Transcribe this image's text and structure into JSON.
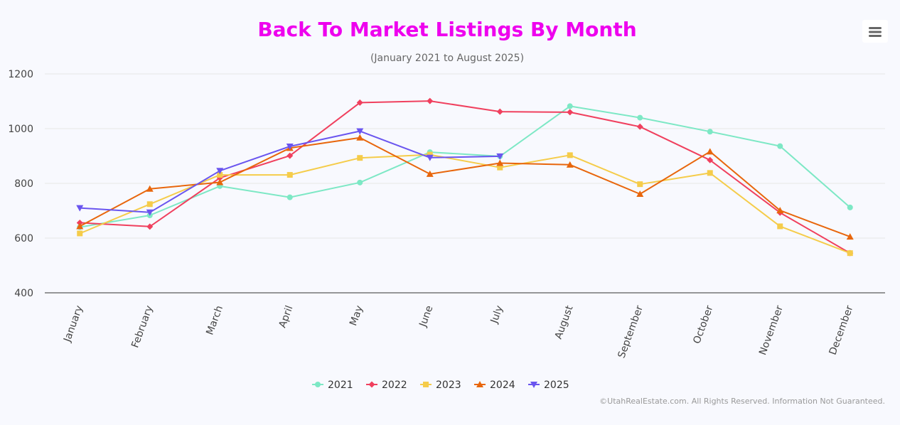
{
  "chart_data": {
    "type": "line",
    "title": "Back To Market Listings By Month",
    "subtitle": "(January 2021 to August 2025)",
    "categories": [
      "January",
      "February",
      "March",
      "April",
      "May",
      "June",
      "July",
      "August",
      "September",
      "October",
      "November",
      "December"
    ],
    "ylim": [
      400,
      1200
    ],
    "yticks": [
      400,
      600,
      800,
      1000,
      1200
    ],
    "grid": true,
    "legend_position": "bottom-center",
    "series": [
      {
        "name": "2021",
        "color": "#7de8c5",
        "marker": "circle",
        "values": [
          640,
          683,
          790,
          749,
          803,
          914,
          899,
          1082,
          1040,
          989,
          936,
          712
        ]
      },
      {
        "name": "2022",
        "color": "#f0405e",
        "marker": "diamond",
        "values": [
          656,
          642,
          820,
          901,
          1095,
          1101,
          1062,
          1060,
          1007,
          885,
          693,
          545
        ]
      },
      {
        "name": "2023",
        "color": "#f5cc4a",
        "marker": "square",
        "values": [
          617,
          724,
          831,
          831,
          893,
          905,
          858,
          903,
          797,
          838,
          643,
          545
        ]
      },
      {
        "name": "2024",
        "color": "#e8660c",
        "marker": "triangle",
        "values": [
          643,
          780,
          804,
          929,
          967,
          834,
          874,
          868,
          761,
          916,
          701,
          605
        ]
      },
      {
        "name": "2025",
        "color": "#6a55ef",
        "marker": "triangle-down",
        "values": [
          710,
          694,
          846,
          935,
          991,
          894,
          899,
          null,
          null,
          null,
          null,
          null
        ]
      }
    ],
    "credits": "©UtahRealEstate.com. All Rights Reserved. Information Not Guaranteed."
  },
  "menu": {
    "icon": "hamburger-menu-icon"
  }
}
